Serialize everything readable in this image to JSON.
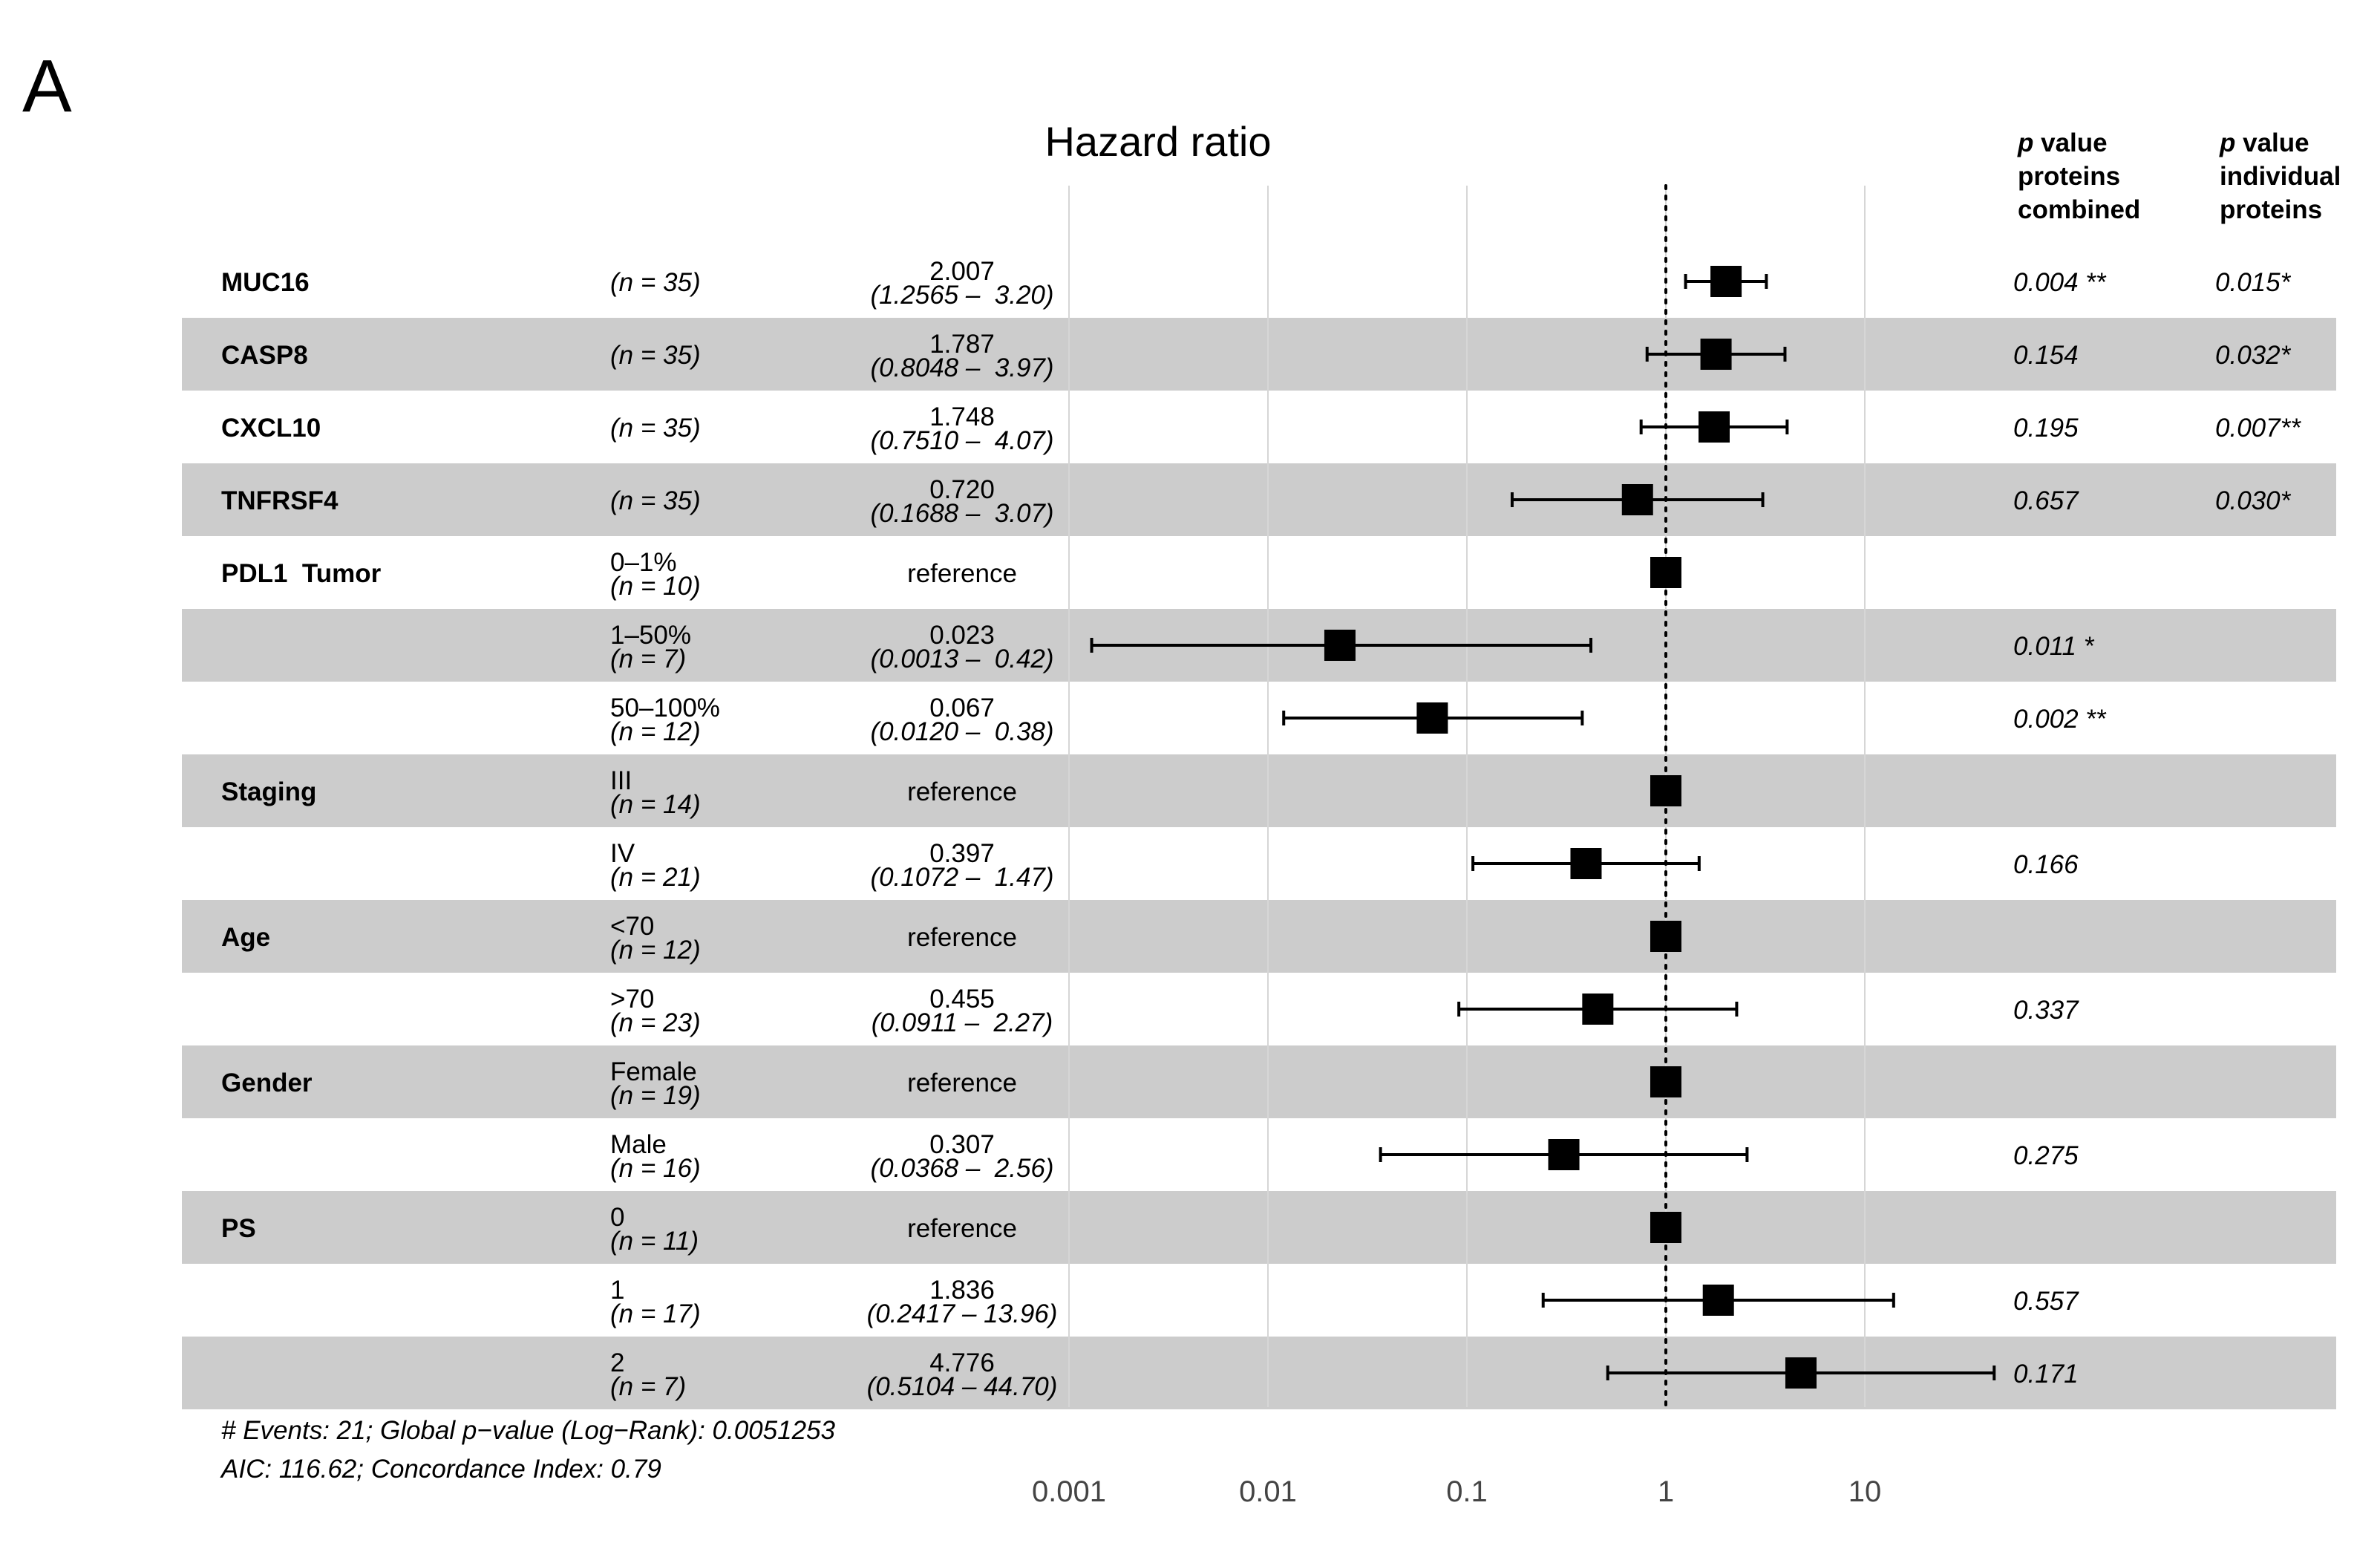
{
  "panel_label": "A",
  "headers": {
    "p_combined": [
      "value",
      "proteins",
      "combined"
    ],
    "p_individual": [
      "value",
      "individual",
      "proteins"
    ],
    "p_letter": "p"
  },
  "colors": {
    "stripe": "#cccccc",
    "marker": "#000000",
    "gridline": "#d6d6d6"
  },
  "chart_data": {
    "type": "forest",
    "title": "Hazard ratio",
    "x_scale": "log10",
    "xlim": [
      0.001,
      100
    ],
    "reference_line": 1,
    "x_ticks": [
      {
        "value": 0.001,
        "label": "0.001"
      },
      {
        "value": 0.01,
        "label": "0.01"
      },
      {
        "value": 0.1,
        "label": "0.1"
      },
      {
        "value": 1,
        "label": "1"
      },
      {
        "value": 10,
        "label": "10"
      }
    ],
    "rows": [
      {
        "variable": "MUC16",
        "level": "",
        "n": "(n = 35)",
        "hr": 2.007,
        "lo": 1.2565,
        "hi": 3.2,
        "hr_label": "2.007",
        "ci_label": "(1.2565 –  3.20)",
        "p_combined": "0.004 **",
        "p_individual": "0.015*",
        "stripe": false
      },
      {
        "variable": "CASP8",
        "level": "",
        "n": "(n = 35)",
        "hr": 1.787,
        "lo": 0.8048,
        "hi": 3.97,
        "hr_label": "1.787",
        "ci_label": "(0.8048 –  3.97)",
        "p_combined": "0.154",
        "p_individual": "0.032*",
        "stripe": true
      },
      {
        "variable": "CXCL10",
        "level": "",
        "n": "(n = 35)",
        "hr": 1.748,
        "lo": 0.751,
        "hi": 4.07,
        "hr_label": "1.748",
        "ci_label": "(0.7510 –  4.07)",
        "p_combined": "0.195",
        "p_individual": "0.007**",
        "stripe": false
      },
      {
        "variable": "TNFRSF4",
        "level": "",
        "n": "(n = 35)",
        "hr": 0.72,
        "lo": 0.1688,
        "hi": 3.07,
        "hr_label": "0.720",
        "ci_label": "(0.1688 –  3.07)",
        "p_combined": "0.657",
        "p_individual": "0.030*",
        "stripe": true
      },
      {
        "variable": "PDL1  Tumor",
        "level": "0–1%",
        "n": "(n = 10)",
        "hr": 1,
        "lo": null,
        "hi": null,
        "hr_label": "reference",
        "ci_label": "",
        "p_combined": "",
        "p_individual": "",
        "stripe": false
      },
      {
        "variable": "",
        "level": "1–50%",
        "n": "(n = 7)",
        "hr": 0.023,
        "lo": 0.0013,
        "hi": 0.42,
        "hr_label": "0.023",
        "ci_label": "(0.0013 –  0.42)",
        "p_combined": "0.011 *",
        "p_individual": "",
        "stripe": true
      },
      {
        "variable": "",
        "level": "50–100%",
        "n": "(n = 12)",
        "hr": 0.067,
        "lo": 0.012,
        "hi": 0.38,
        "hr_label": "0.067",
        "ci_label": "(0.0120 –  0.38)",
        "p_combined": "0.002 **",
        "p_individual": "",
        "stripe": false
      },
      {
        "variable": "Staging",
        "level": "III",
        "n": "(n = 14)",
        "hr": 1,
        "lo": null,
        "hi": null,
        "hr_label": "reference",
        "ci_label": "",
        "p_combined": "",
        "p_individual": "",
        "stripe": true
      },
      {
        "variable": "",
        "level": "IV",
        "n": "(n = 21)",
        "hr": 0.397,
        "lo": 0.1072,
        "hi": 1.47,
        "hr_label": "0.397",
        "ci_label": "(0.1072 –  1.47)",
        "p_combined": "0.166",
        "p_individual": "",
        "stripe": false
      },
      {
        "variable": "Age",
        "level": "<70",
        "n": "(n = 12)",
        "hr": 1,
        "lo": null,
        "hi": null,
        "hr_label": "reference",
        "ci_label": "",
        "p_combined": "",
        "p_individual": "",
        "stripe": true
      },
      {
        "variable": "",
        "level": ">70",
        "n": "(n = 23)",
        "hr": 0.455,
        "lo": 0.0911,
        "hi": 2.27,
        "hr_label": "0.455",
        "ci_label": "(0.0911 –  2.27)",
        "p_combined": "0.337",
        "p_individual": "",
        "stripe": false
      },
      {
        "variable": "Gender",
        "level": "Female",
        "n": "(n = 19)",
        "hr": 1,
        "lo": null,
        "hi": null,
        "hr_label": "reference",
        "ci_label": "",
        "p_combined": "",
        "p_individual": "",
        "stripe": true
      },
      {
        "variable": "",
        "level": "Male",
        "n": "(n = 16)",
        "hr": 0.307,
        "lo": 0.0368,
        "hi": 2.56,
        "hr_label": "0.307",
        "ci_label": "(0.0368 –  2.56)",
        "p_combined": "0.275",
        "p_individual": "",
        "stripe": false
      },
      {
        "variable": "PS",
        "level": "0",
        "n": "(n = 11)",
        "hr": 1,
        "lo": null,
        "hi": null,
        "hr_label": "reference",
        "ci_label": "",
        "p_combined": "",
        "p_individual": "",
        "stripe": true
      },
      {
        "variable": "",
        "level": "1",
        "n": "(n = 17)",
        "hr": 1.836,
        "lo": 0.2417,
        "hi": 13.96,
        "hr_label": "1.836",
        "ci_label": "(0.2417 – 13.96)",
        "p_combined": "0.557",
        "p_individual": "",
        "stripe": false
      },
      {
        "variable": "",
        "level": "2",
        "n": "(n = 7)",
        "hr": 4.776,
        "lo": 0.5104,
        "hi": 44.7,
        "hr_label": "4.776",
        "ci_label": "(0.5104 – 44.70)",
        "p_combined": "0.171",
        "p_individual": "",
        "stripe": true
      }
    ],
    "footnotes": [
      "# Events: 21; Global p−value (Log−Rank): 0.0051253",
      "AIC: 116.62; Concordance Index: 0.79"
    ]
  }
}
